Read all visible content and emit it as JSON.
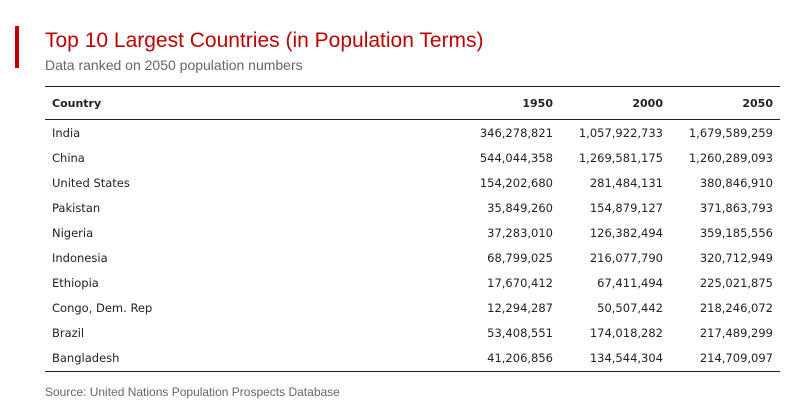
{
  "title": "Top 10 Largest Countries (in Population Terms)",
  "subtitle": "Data ranked on 2050 population numbers",
  "source": "Source: United Nations Population Prospects Database",
  "colors": {
    "accent": "#c00000",
    "rule": "#222222",
    "muted_text": "#666666"
  },
  "chart_data": {
    "type": "table",
    "title": "Top 10 Largest Countries (in Population Terms)",
    "subtitle": "Data ranked on 2050 population numbers",
    "columns": [
      "Country",
      "1950",
      "2000",
      "2050"
    ],
    "rows": [
      [
        "India",
        "346,278,821",
        "1,057,922,733",
        "1,679,589,259"
      ],
      [
        "China",
        "544,044,358",
        "1,269,581,175",
        "1,260,289,093"
      ],
      [
        "United States",
        "154,202,680",
        "281,484,131",
        "380,846,910"
      ],
      [
        "Pakistan",
        "35,849,260",
        "154,879,127",
        "371,863,793"
      ],
      [
        "Nigeria",
        "37,283,010",
        "126,382,494",
        "359,185,556"
      ],
      [
        "Indonesia",
        "68,799,025",
        "216,077,790",
        "320,712,949"
      ],
      [
        "Ethiopia",
        "17,670,412",
        "67,411,494",
        "225,021,875"
      ],
      [
        "Congo, Dem. Rep",
        "12,294,287",
        "50,507,442",
        "218,246,072"
      ],
      [
        "Brazil",
        "53,408,551",
        "174,018,282",
        "217,489,299"
      ],
      [
        "Bangladesh",
        "41,206,856",
        "134,544,304",
        "214,709,097"
      ]
    ],
    "source": "Source: United Nations Population Prospects Database"
  }
}
